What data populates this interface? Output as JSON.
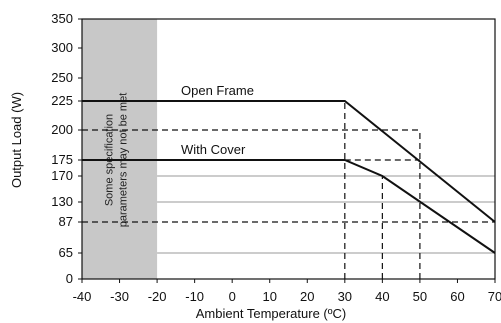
{
  "chart_data": {
    "type": "line",
    "xlabel": "Ambient Temperature (ºC)",
    "ylabel": "Output Load (W)",
    "xlim": [
      -40,
      70
    ],
    "ylim": [
      0,
      350
    ],
    "x_ticks": [
      "-40",
      "-30",
      "-20",
      "-10",
      "0",
      "10",
      "20",
      "30",
      "40",
      "50",
      "60",
      "70"
    ],
    "y_ticks": [
      "0",
      "65",
      "87",
      "130",
      "170",
      "175",
      "200",
      "225",
      "250",
      "300",
      "350"
    ],
    "y_tick_values": [
      0,
      65,
      87,
      130,
      170,
      175,
      200,
      225,
      250,
      300,
      350
    ],
    "y_axis_scale": "non-linear (tick positions follow printed labels)",
    "grid": "horizontal lines at 65, 130, 170",
    "shaded_region": {
      "x_range": [
        -40,
        -20
      ],
      "label_line1": "Some specification",
      "label_line2": "parameters may not be met",
      "color": "#c8c8c8"
    },
    "series": [
      {
        "name": "Open Frame",
        "x": [
          -40,
          30,
          70
        ],
        "y": [
          225,
          225,
          87
        ]
      },
      {
        "name": "With Cover",
        "x": [
          -40,
          30,
          40,
          70
        ],
        "y": [
          175,
          175,
          170,
          65
        ]
      }
    ],
    "dashed_refs": [
      {
        "kind": "h",
        "y": 200,
        "x_from": -40,
        "x_to": 50
      },
      {
        "kind": "h",
        "y": 175,
        "x_from": 30,
        "x_to": 50
      },
      {
        "kind": "h",
        "y": 87,
        "x_from": -40,
        "x_to": 70
      },
      {
        "kind": "v",
        "x": 30,
        "y_from": 0,
        "y_to": 225
      },
      {
        "kind": "v",
        "x": 40,
        "y_from": 0,
        "y_to": 170
      },
      {
        "kind": "v",
        "x": 50,
        "y_from": 0,
        "y_to": 200
      }
    ]
  }
}
